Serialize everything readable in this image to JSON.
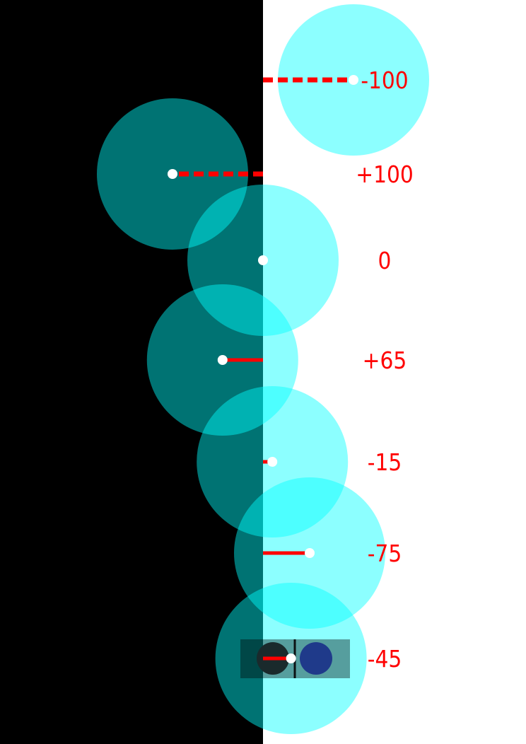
{
  "colors": {
    "left_background": "#000000",
    "right_background": "#ffffff",
    "circle": "#00ffff",
    "circle_opacity": 0.45,
    "offset_line": "#ff0000",
    "label": "#ff0000",
    "marker": "#ffffff",
    "swatch_dark": "#1a2a2c",
    "swatch_blue": "#1f3a8a"
  },
  "rows": [
    {
      "label": "-100",
      "value": -100,
      "style": "dashed"
    },
    {
      "label": "+100",
      "value": 100,
      "style": "dashed"
    },
    {
      "label": "0",
      "value": 0,
      "style": "solid"
    },
    {
      "label": "+65",
      "value": 65,
      "style": "solid"
    },
    {
      "label": "-15",
      "value": -15,
      "style": "solid"
    },
    {
      "label": "-75",
      "value": -75,
      "style": "solid"
    },
    {
      "label": "-45",
      "value": -45,
      "style": "solid",
      "has_swatch": true
    }
  ]
}
